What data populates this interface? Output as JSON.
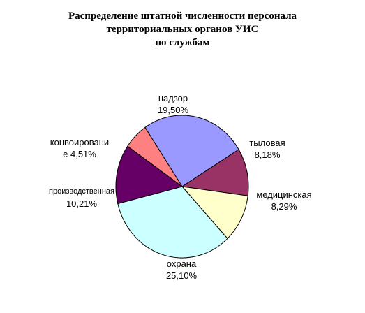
{
  "chart_data": {
    "type": "pie",
    "title": [
      "Распределение штатной численности персонала",
      "территориальных органов УИС",
      "по службам"
    ],
    "slices": [
      {
        "label": "надзор",
        "value": 19.5,
        "display": "19,50%",
        "color": "#9999ff"
      },
      {
        "label": "тыловая",
        "value": 8.18,
        "display": "8,18%",
        "color": "#993366"
      },
      {
        "label": "медицинская",
        "value": 8.29,
        "display": "8,29%",
        "color": "#ffffcc"
      },
      {
        "label": "охрана",
        "value": 25.1,
        "display": "25,10%",
        "color": "#ccffff"
      },
      {
        "label": "производственная",
        "value": 10.21,
        "display": "10,21%",
        "color": "#660066"
      },
      {
        "label": "конвоировани е",
        "value": 4.51,
        "display": "4,51%",
        "color": "#ff8080"
      }
    ],
    "label_lines": {
      "konvoy_line1": "конвоировани",
      "konvoy_line2": "е 4,51%"
    },
    "legend": "none"
  }
}
